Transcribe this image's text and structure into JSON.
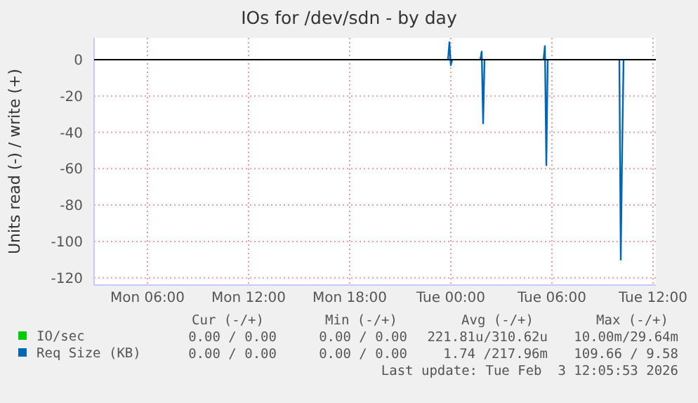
{
  "chart_data": {
    "type": "line",
    "title": "IOs for /dev/sdn - by day",
    "ylabel": "Units read (-) / write (+)",
    "xlim": [
      "2026-02-02T02:50",
      "2026-02-03T12:10"
    ],
    "xticks": [
      {
        "value": "2026-02-02T06:00",
        "label": "Mon 06:00"
      },
      {
        "value": "2026-02-02T12:00",
        "label": "Mon 12:00"
      },
      {
        "value": "2026-02-02T18:00",
        "label": "Mon 18:00"
      },
      {
        "value": "2026-02-03T00:00",
        "label": "Tue 00:00"
      },
      {
        "value": "2026-02-03T06:00",
        "label": "Tue 06:00"
      },
      {
        "value": "2026-02-03T12:00",
        "label": "Tue 12:00"
      }
    ],
    "ylim": [
      -124,
      12
    ],
    "yticks": [
      -120,
      -100,
      -80,
      -60,
      -40,
      -20,
      0
    ],
    "grid": true,
    "legend": "bottom",
    "marker": "none",
    "line_style": "solid",
    "ref_lines": [
      {
        "axis": "y",
        "value": 0,
        "color": "#000000"
      }
    ],
    "series": [
      {
        "name": "IO/sec",
        "color": "#00cc00"
      },
      {
        "name": "Req Size (KB)",
        "color": "#0066b3",
        "x": [
          "2026-02-02T23:50",
          "2026-02-02T23:55",
          "2026-02-03T00:00",
          "2026-02-03T00:05",
          "2026-02-03T01:00",
          "2026-02-03T01:45",
          "2026-02-03T01:50",
          "2026-02-03T01:55",
          "2026-02-03T02:00",
          "2026-02-03T04:00",
          "2026-02-03T05:30",
          "2026-02-03T05:35",
          "2026-02-03T05:40",
          "2026-02-03T05:45",
          "2026-02-03T08:00",
          "2026-02-03T10:00",
          "2026-02-03T10:05",
          "2026-02-03T10:10",
          "2026-02-03T10:15"
        ],
        "values": [
          0,
          9.6,
          -3,
          0,
          null,
          0,
          4.5,
          -35,
          0,
          null,
          0,
          7.5,
          -58,
          0,
          null,
          0,
          -110,
          -50,
          0
        ]
      }
    ],
    "annotations": [
      "Cur (-/+)",
      "Min (-/+)",
      "Avg (-/+)",
      "Max (-/+)",
      "0.00 / 0.00",
      "0.00 / 0.00",
      "221.81u/310.62u",
      "10.00m/29.64m",
      "0.00 / 0.00",
      "0.00 / 0.00",
      "1.74 /217.96m",
      "109.66 / 9.58",
      "Last update: Tue Feb  3 12:05:53 2026"
    ]
  }
}
